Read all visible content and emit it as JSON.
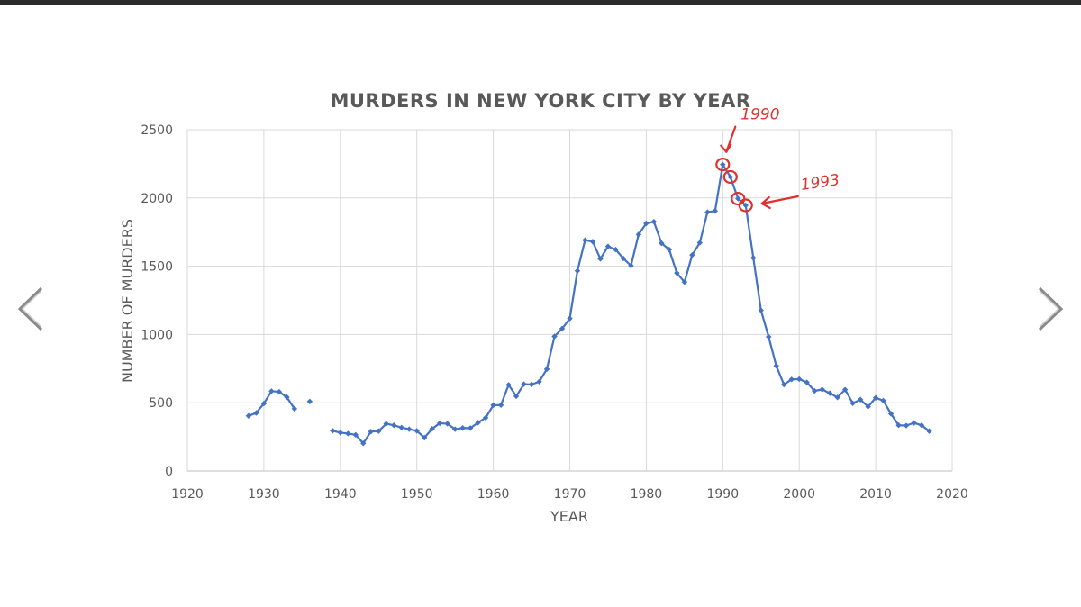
{
  "viewer": {
    "prev_icon": "chevron-left-icon",
    "next_icon": "chevron-right-icon",
    "accent": "#2b2b2b"
  },
  "chart_data": {
    "type": "line",
    "title": "MURDERS IN NEW YORK CITY BY YEAR",
    "xlabel": "YEAR",
    "ylabel": "NUMBER OF MURDERS",
    "xlim": [
      1920,
      2020
    ],
    "ylim": [
      0,
      2500
    ],
    "x_ticks": [
      1920,
      1930,
      1940,
      1950,
      1960,
      1970,
      1980,
      1990,
      2000,
      2010,
      2020
    ],
    "y_ticks": [
      0,
      500,
      1000,
      1500,
      2000,
      2500
    ],
    "grid": true,
    "legend": "none",
    "line_color": "#4472c4",
    "series": [
      {
        "segments": [
          [
            [
              1928,
              404
            ],
            [
              1929,
              425
            ],
            [
              1930,
              494
            ],
            [
              1931,
              585
            ],
            [
              1932,
              580
            ],
            [
              1933,
              541
            ],
            [
              1934,
              456
            ]
          ],
          [
            [
              1936,
              509
            ]
          ],
          [
            [
              1939,
              295
            ],
            [
              1940,
              281
            ],
            [
              1941,
              274
            ],
            [
              1942,
              265
            ],
            [
              1943,
              203
            ],
            [
              1944,
              289
            ],
            [
              1945,
              292
            ],
            [
              1946,
              346
            ],
            [
              1947,
              335
            ],
            [
              1948,
              318
            ],
            [
              1949,
              306
            ],
            [
              1950,
              294
            ],
            [
              1951,
              244
            ],
            [
              1952,
              309
            ],
            [
              1953,
              350
            ],
            [
              1954,
              346
            ],
            [
              1955,
              306
            ],
            [
              1956,
              315
            ],
            [
              1957,
              314
            ],
            [
              1958,
              354
            ],
            [
              1959,
              390
            ],
            [
              1960,
              482
            ],
            [
              1961,
              483
            ],
            [
              1962,
              631
            ],
            [
              1963,
              548
            ],
            [
              1964,
              636
            ],
            [
              1965,
              634
            ],
            [
              1966,
              654
            ],
            [
              1967,
              746
            ],
            [
              1968,
              986
            ],
            [
              1969,
              1043
            ],
            [
              1970,
              1117
            ],
            [
              1971,
              1466
            ],
            [
              1972,
              1691
            ],
            [
              1973,
              1680
            ],
            [
              1974,
              1554
            ],
            [
              1975,
              1645
            ],
            [
              1976,
              1622
            ],
            [
              1977,
              1557
            ],
            [
              1978,
              1504
            ],
            [
              1979,
              1733
            ],
            [
              1980,
              1814
            ],
            [
              1981,
              1826
            ],
            [
              1982,
              1668
            ],
            [
              1983,
              1622
            ],
            [
              1984,
              1450
            ],
            [
              1985,
              1384
            ],
            [
              1986,
              1582
            ],
            [
              1987,
              1672
            ],
            [
              1988,
              1896
            ],
            [
              1989,
              1905
            ],
            [
              1990,
              2245
            ],
            [
              1991,
              2154
            ],
            [
              1992,
              1995
            ],
            [
              1993,
              1946
            ],
            [
              1994,
              1561
            ],
            [
              1995,
              1177
            ],
            [
              1996,
              983
            ],
            [
              1997,
              770
            ],
            [
              1998,
              633
            ],
            [
              1999,
              671
            ],
            [
              2000,
              673
            ],
            [
              2001,
              649
            ],
            [
              2002,
              587
            ],
            [
              2003,
              597
            ],
            [
              2004,
              570
            ],
            [
              2005,
              539
            ],
            [
              2006,
              596
            ],
            [
              2007,
              496
            ],
            [
              2008,
              523
            ],
            [
              2009,
              471
            ],
            [
              2010,
              536
            ],
            [
              2011,
              515
            ],
            [
              2012,
              419
            ],
            [
              2013,
              335
            ],
            [
              2014,
              333
            ],
            [
              2015,
              352
            ],
            [
              2016,
              335
            ],
            [
              2017,
              292
            ]
          ]
        ]
      }
    ],
    "annotations": [
      {
        "text": "1990",
        "x": 1990,
        "y": 2245,
        "color": "#e0312e"
      },
      {
        "text": "1993",
        "x": 1993,
        "y": 1946,
        "color": "#e0312e"
      }
    ],
    "circled_points": [
      [
        1990,
        2245
      ],
      [
        1991,
        2154
      ],
      [
        1992,
        1995
      ],
      [
        1993,
        1946
      ]
    ]
  }
}
